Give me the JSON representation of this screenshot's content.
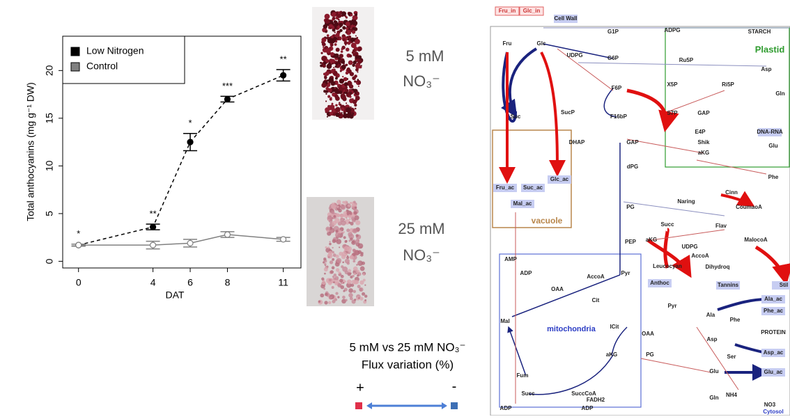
{
  "chart_data": {
    "type": "line",
    "x": [
      0,
      4,
      6,
      8,
      11
    ],
    "xlim": [
      -0.85,
      11.95
    ],
    "xticks": [
      0,
      4,
      6,
      8,
      11
    ],
    "ylim": [
      -0.7,
      23.6
    ],
    "yticks": [
      0,
      5,
      10,
      15,
      20
    ],
    "xlabel": "DAT",
    "ylabel": "Total anthocyanins (mg g⁻¹ DW)",
    "legend": "upper left",
    "series": [
      {
        "name": "Low Nitrogen",
        "color": "#000000",
        "dash": true,
        "filled": true,
        "values": [
          1.7,
          3.6,
          12.5,
          17.0,
          19.5
        ],
        "errors": [
          0.1,
          0.3,
          0.9,
          0.3,
          0.6
        ]
      },
      {
        "name": "Control",
        "color": "#808080",
        "dash": false,
        "filled": false,
        "values": [
          1.7,
          1.7,
          1.9,
          2.8,
          2.3
        ],
        "errors": [
          0.1,
          0.4,
          0.4,
          0.3,
          0.2
        ]
      }
    ],
    "annotations": [
      "*",
      "**",
      "*",
      "***",
      "**"
    ]
  },
  "photos": [
    {
      "concentration": "5 mM",
      "ion": "NO₃⁻"
    },
    {
      "concentration": "25 mM",
      "ion": "NO₃⁻"
    }
  ],
  "flux_legend": {
    "title": "5 mM vs 25 mM NO₃⁻",
    "subtitle": "Flux variation (%)",
    "plus": "+",
    "minus": "-"
  },
  "diagram": {
    "compartments": [
      "Plastid",
      "vacuole",
      "mitochondria",
      "Cytosol"
    ],
    "nodes": [
      "Fru_in",
      "Glc_in",
      "Cell Wall",
      "G1P",
      "ADPG",
      "STARCH",
      "Fru",
      "Glc",
      "UDPG",
      "G6P",
      "Ru5P",
      "X5P",
      "Ri5P",
      "Asp",
      "Gln",
      "F6P",
      "S7P",
      "GAP",
      "F16bP",
      "E4P",
      "SucP",
      "Suc",
      "DNA-RNA",
      "DHAP",
      "GAP",
      "Shik",
      "aKG",
      "Glu",
      "Fru_ac",
      "Suc_ac",
      "Glc_ac",
      "Mal_ac",
      "Phe",
      "Cinn",
      "Naring",
      "CoumaoA",
      "dPG",
      "PG",
      "Succ",
      "Flav",
      "aKG",
      "UDPG",
      "AccoA",
      "MalocoA",
      "PEP",
      "AMP",
      "ADP",
      "Pyr",
      "Dihydroq",
      "Leucocyan",
      "OAA",
      "AccoA",
      "Anthoc",
      "Tannins",
      "Stil",
      "Cit",
      "Ala_ac",
      "Phe_ac",
      "Pyr",
      "Ala",
      "Phe",
      "PROTEIN",
      "ICit",
      "OAA",
      "Asp",
      "Mal",
      "Ser",
      "Asp_ac",
      "aKG",
      "PG",
      "Glu",
      "Glu_ac",
      "Fum",
      "Succ",
      "SuccCoA",
      "NH4",
      "NO3",
      "Gln",
      "ADP",
      "FADH2",
      "ADP"
    ]
  }
}
